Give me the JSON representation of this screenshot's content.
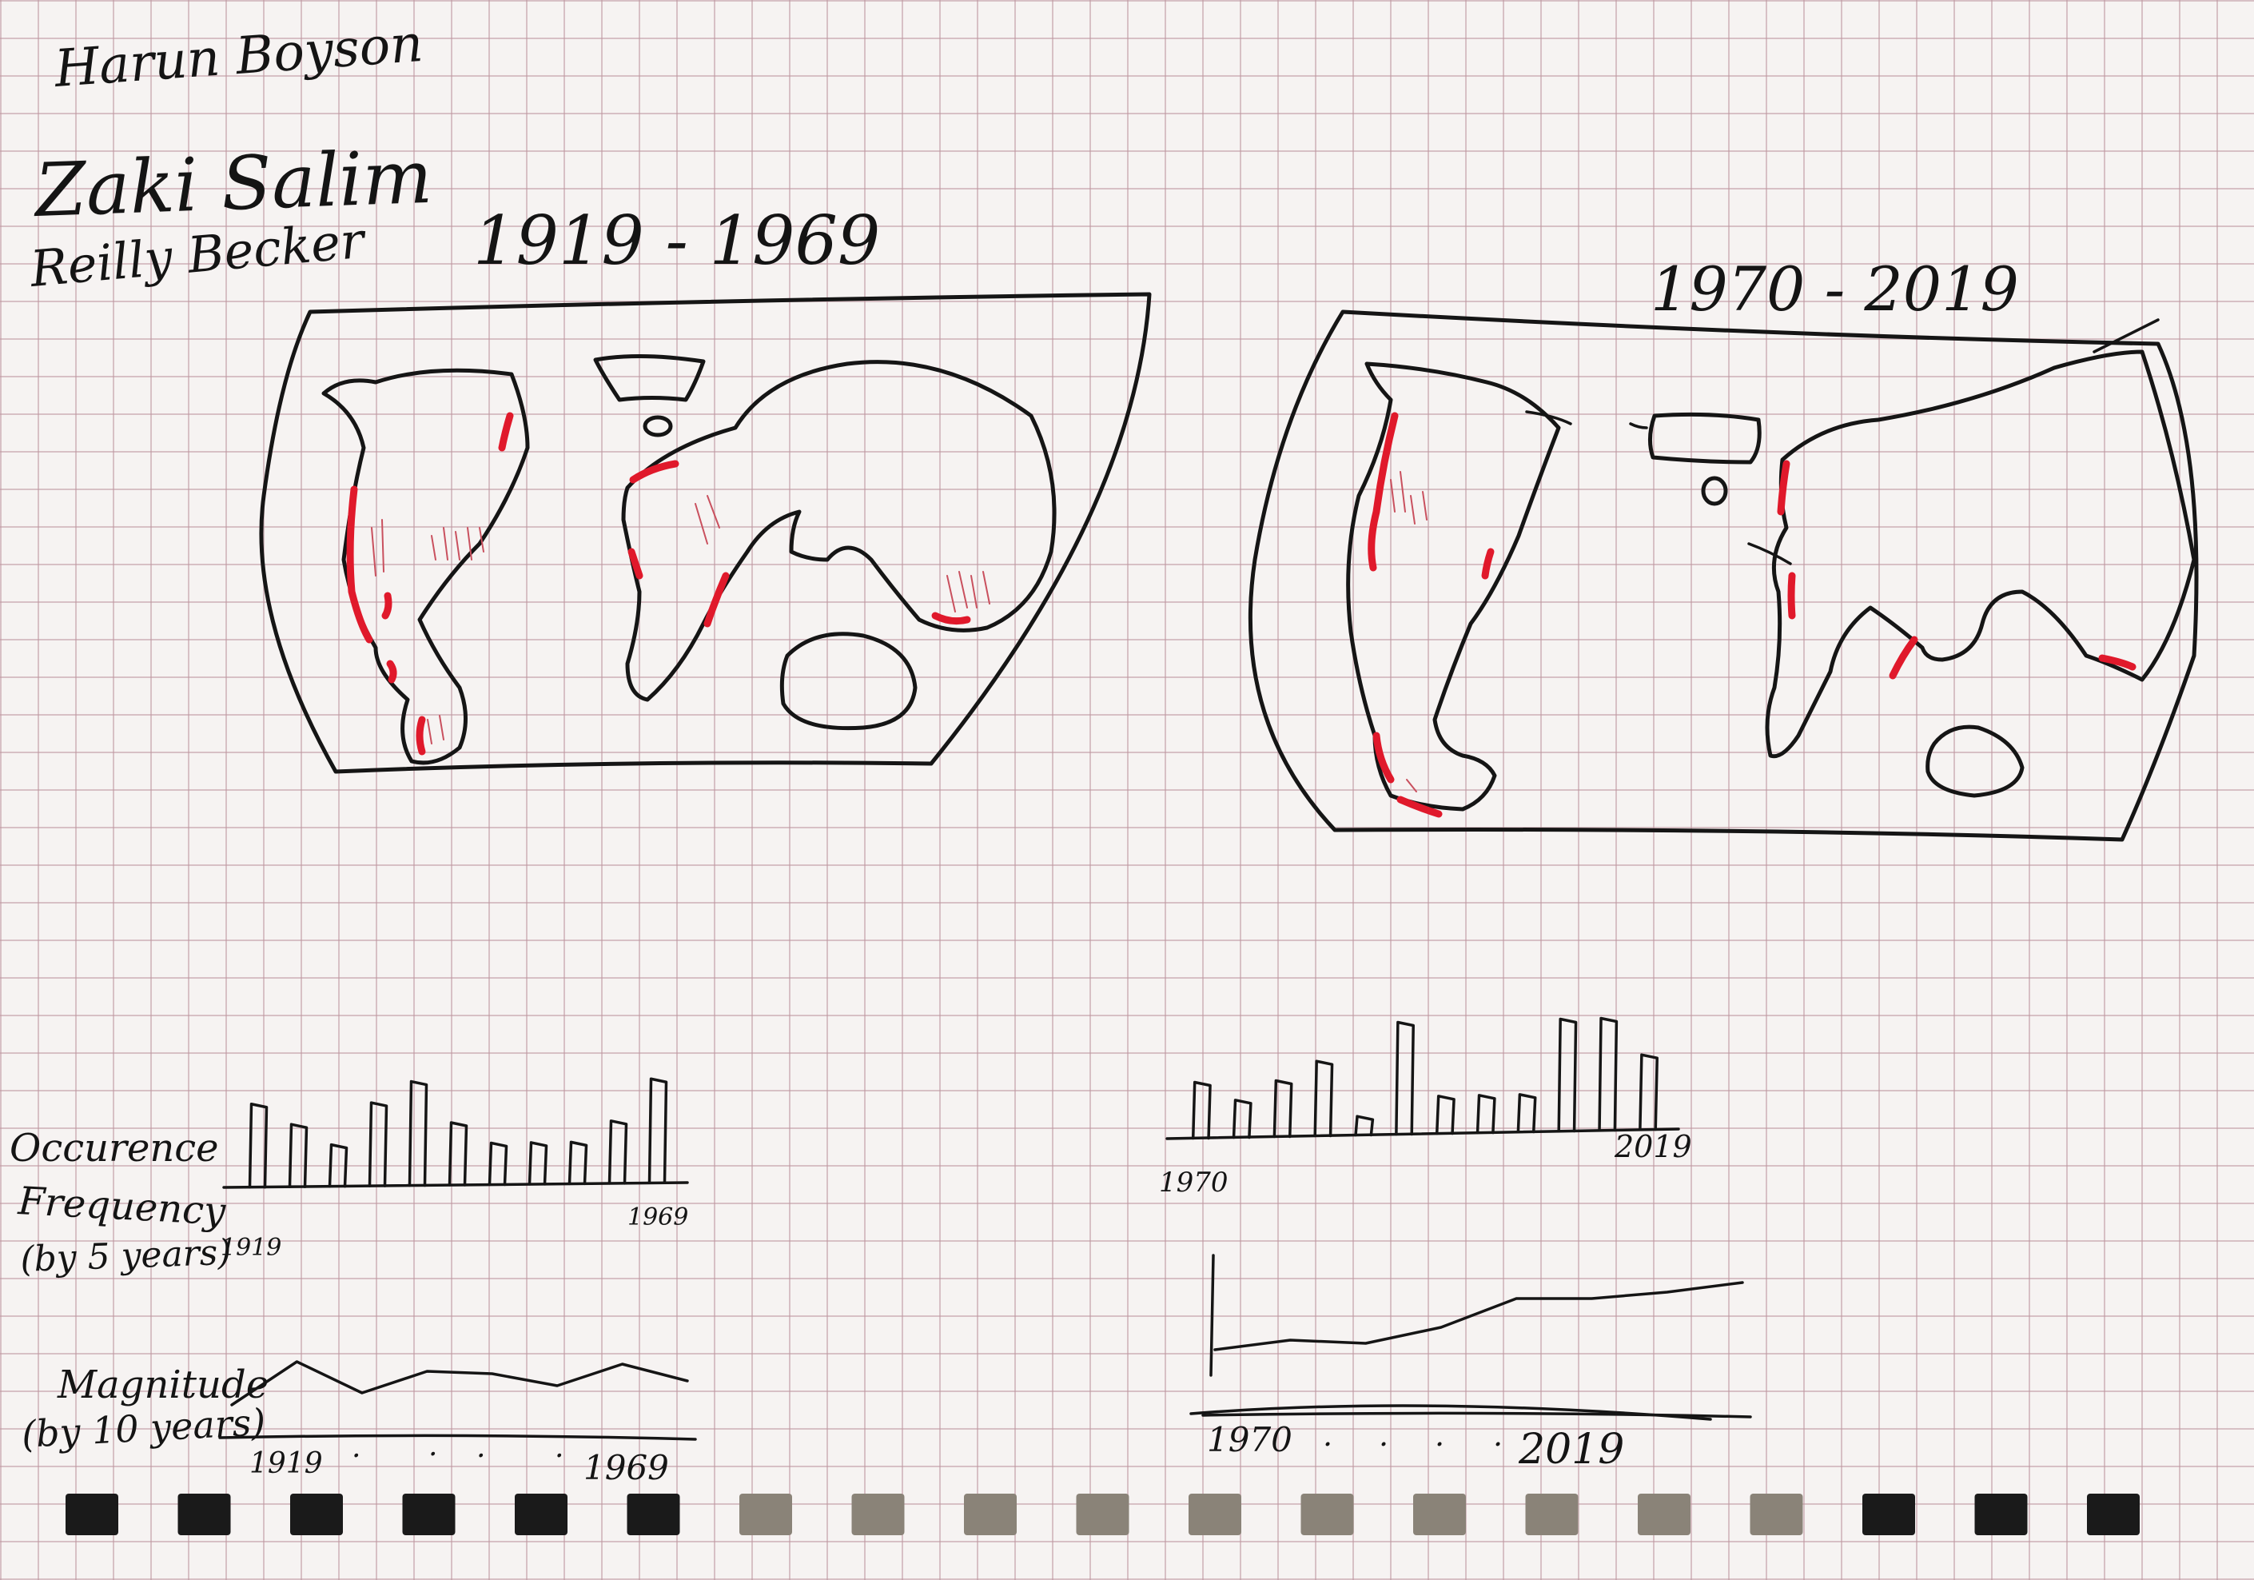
{
  "authors": [
    "Harun Boyson",
    "Zaki Salim",
    "Reilly Becker"
  ],
  "maps": {
    "left_period": "1919 - 1969",
    "right_period": "1970 - 2019"
  },
  "labels": {
    "frequency": [
      "Occurence",
      "Frequency",
      "(by 5 years)"
    ],
    "magnitude": [
      "Magnitude",
      "(by 10 years)"
    ]
  },
  "frequency_chart_left": {
    "start": "1919",
    "end": "1969",
    "values": [
      4,
      3,
      2,
      4,
      5,
      3,
      2,
      2,
      2,
      3,
      5
    ]
  },
  "frequency_chart_right": {
    "start": "1970",
    "end": "2019",
    "values": [
      3,
      2,
      3,
      4,
      1,
      6,
      2,
      2,
      2,
      6,
      6,
      4
    ]
  },
  "magnitude_chart_left": {
    "start": "1919",
    "end": "1969",
    "ticks": [
      ". ",
      ". ",
      ". ",
      ". "
    ],
    "values": [
      5.6,
      7.4,
      6.1,
      7.0,
      6.9,
      6.4,
      7.3,
      6.6
    ]
  },
  "magnitude_chart_right": {
    "start": "1970",
    "end": "2019",
    "ticks": [
      ". ",
      ". ",
      ". ",
      ". "
    ],
    "values": [
      5.8,
      6.1,
      6.0,
      6.5,
      7.4,
      7.4,
      7.6,
      7.9
    ]
  },
  "colors": {
    "ink": "#151515",
    "marker": "#e0192b",
    "paper": "#f6f3f2",
    "grid": "#be96a0"
  }
}
